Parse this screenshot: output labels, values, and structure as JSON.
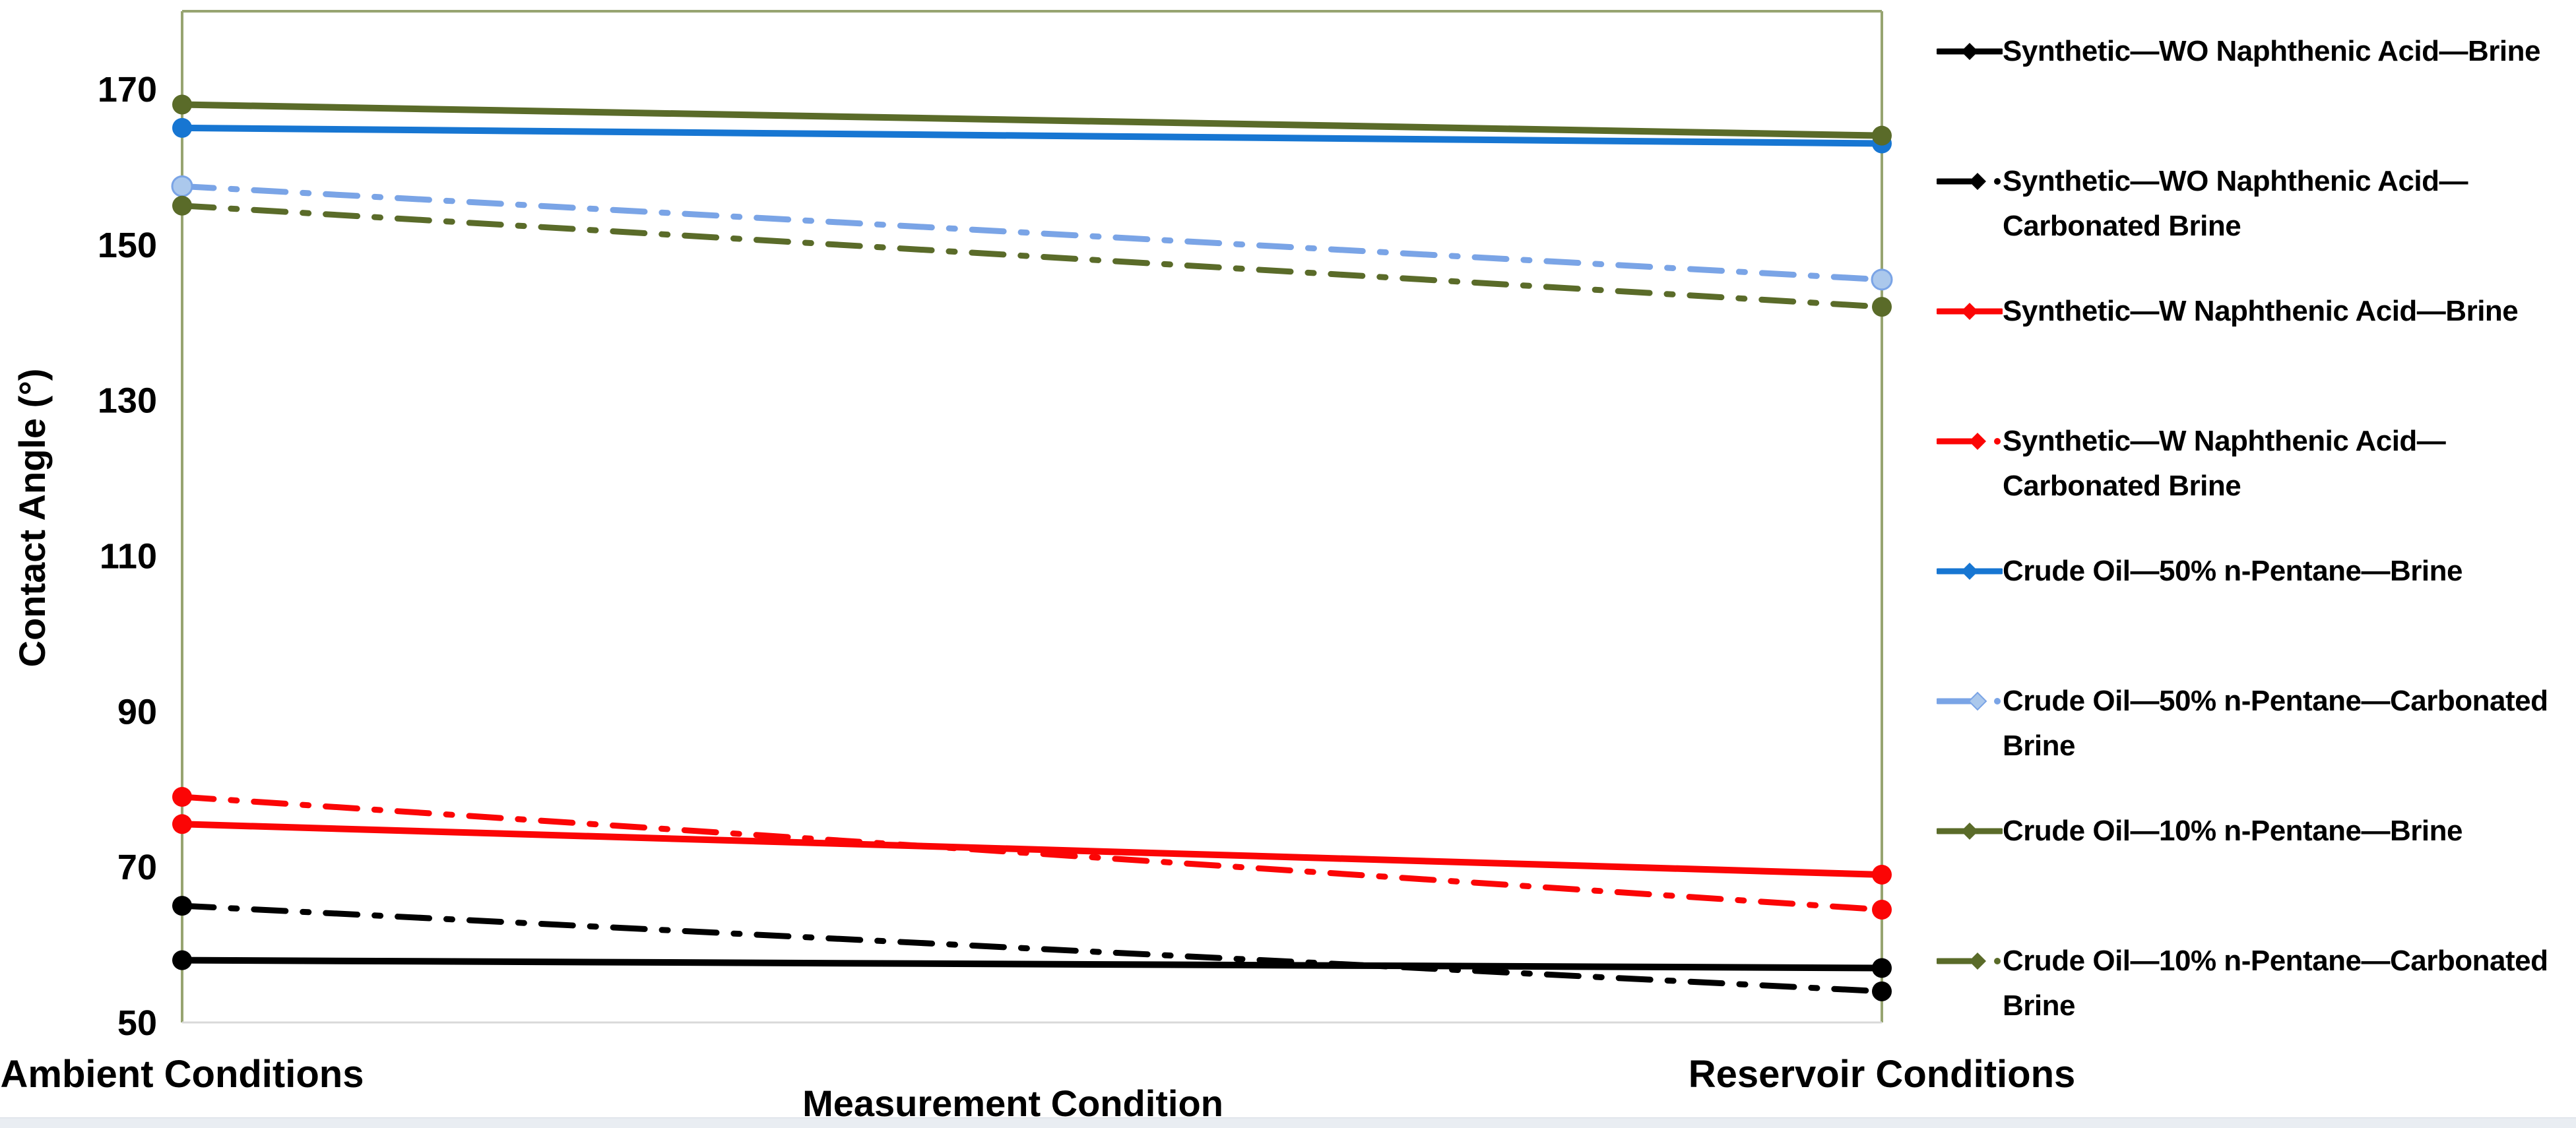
{
  "chart_data": {
    "type": "line",
    "title": "",
    "xlabel": "Measurement Condition",
    "ylabel": "Contact Angle (°)",
    "categories": [
      "Ambient Conditions",
      "Reservoir Conditions"
    ],
    "ylim": [
      50,
      180
    ],
    "yticks": [
      50,
      70,
      90,
      110,
      130,
      150,
      170
    ],
    "grid": false,
    "legend_position": "right",
    "axis_border_color": "#97a471",
    "bottom_border_color": "#d9d9d9",
    "series": [
      {
        "name": "Synthetic—WO Naphthenic Acid—Brine",
        "values": [
          58,
          57
        ],
        "color": "#000000",
        "marker_color": "#000000",
        "style": "solid"
      },
      {
        "name": "Synthetic—WO Naphthenic Acid—Carbonated Brine",
        "values": [
          65,
          54
        ],
        "color": "#000000",
        "marker_color": "#000000",
        "style": "dashdot"
      },
      {
        "name": "Synthetic—W Naphthenic Acid—Brine",
        "values": [
          75.5,
          69
        ],
        "color": "#fb0505",
        "marker_color": "#fb0505",
        "style": "solid"
      },
      {
        "name": "Synthetic—W Naphthenic Acid—Carbonated Brine",
        "values": [
          79,
          64.5
        ],
        "color": "#fb0505",
        "marker_color": "#fb0505",
        "style": "dashdot"
      },
      {
        "name": "Crude Oil—50% n-Pentane—Brine",
        "values": [
          165,
          163
        ],
        "color": "#1776d2",
        "marker_color": "#1776d2",
        "style": "solid"
      },
      {
        "name": "Crude Oil—50% n-Pentane—Carbonated Brine",
        "values": [
          157.5,
          145.5
        ],
        "color": "#7aa4e6",
        "marker_color": "#abc8ec",
        "style": "dashdot"
      },
      {
        "name": "Crude Oil—10% n-Pentane—Brine",
        "values": [
          168,
          164
        ],
        "color": "#5a6b29",
        "marker_color": "#5a6b29",
        "style": "solid"
      },
      {
        "name": "Crude Oil—10% n-Pentane—Carbonated Brine",
        "values": [
          155,
          142
        ],
        "color": "#5a6b29",
        "marker_color": "#5a6b29",
        "style": "dashdot"
      }
    ]
  }
}
